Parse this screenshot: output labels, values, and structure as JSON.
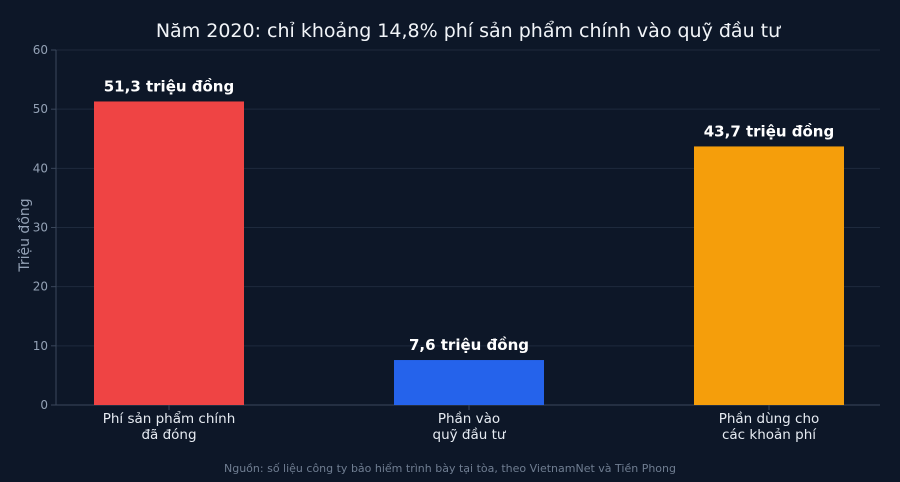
{
  "chart_data": {
    "type": "bar",
    "title": "Năm 2020: chỉ khoảng 14,8% phí sản phẩm chính vào quỹ đầu tư",
    "ylabel": "Triệu đồng",
    "xlabel": "",
    "ylim": [
      0,
      60
    ],
    "yticks": [
      0,
      10,
      20,
      30,
      40,
      50,
      60
    ],
    "grid": true,
    "categories": [
      [
        "Phí sản phẩm chính",
        "đã đóng"
      ],
      [
        "Phần vào",
        "quỹ đầu tư"
      ],
      [
        "Phần dùng cho",
        "các khoản phí"
      ]
    ],
    "values": [
      51.3,
      7.6,
      43.7
    ],
    "data_labels": [
      "51,3 triệu đồng",
      "7,6 triệu đồng",
      "43,7 triệu đồng"
    ],
    "colors": [
      "#ef4444",
      "#2563eb",
      "#f59e0b"
    ],
    "source": "Nguồn: số liệu công ty bảo hiểm trình bày tại tòa, theo VietnamNet và Tiền Phong"
  }
}
